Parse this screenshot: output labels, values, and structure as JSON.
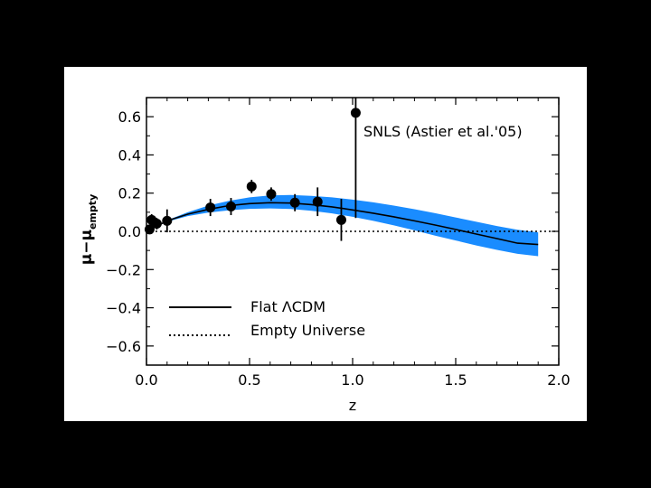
{
  "colors": {
    "band": "#1a8cff",
    "ink": "#000000",
    "frame": "#000000",
    "panel": "#ffffff"
  },
  "chart_data": {
    "type": "scatter",
    "title": "",
    "xlabel": "z",
    "ylabel_main": "μ−μ",
    "ylabel_sub": "empty",
    "xlim": [
      0.0,
      2.0
    ],
    "ylim": [
      -0.7,
      0.7
    ],
    "xticks": [
      0.0,
      0.5,
      1.0,
      1.5,
      2.0
    ],
    "xtick_labels": [
      "0.0",
      "0.5",
      "1.0",
      "1.5",
      "2.0"
    ],
    "yticks": [
      -0.6,
      -0.4,
      -0.2,
      0.0,
      0.2,
      0.4,
      0.6
    ],
    "ytick_labels": [
      "−0.6",
      "−0.4",
      "−0.2",
      "0.0",
      "0.2",
      "0.4",
      "0.6"
    ],
    "annotation": "SNLS (Astier et al.'05)",
    "points": [
      {
        "x": 0.015,
        "y": 0.01,
        "err": 0.02
      },
      {
        "x": 0.025,
        "y": 0.06,
        "err": 0.03
      },
      {
        "x": 0.05,
        "y": 0.04,
        "err": 0.03
      },
      {
        "x": 0.1,
        "y": 0.055,
        "err": 0.06
      },
      {
        "x": 0.31,
        "y": 0.125,
        "err": 0.045
      },
      {
        "x": 0.41,
        "y": 0.13,
        "err": 0.045
      },
      {
        "x": 0.51,
        "y": 0.235,
        "err": 0.035
      },
      {
        "x": 0.605,
        "y": 0.195,
        "err": 0.035
      },
      {
        "x": 0.72,
        "y": 0.15,
        "err": 0.045
      },
      {
        "x": 0.83,
        "y": 0.155,
        "err": 0.075
      },
      {
        "x": 0.945,
        "y": 0.06,
        "err": 0.11
      },
      {
        "x": 1.015,
        "y": 0.62,
        "err": 0.55
      }
    ],
    "series": [
      {
        "name": "Flat ΛCDM",
        "style": "solid",
        "x": [
          0,
          0.1,
          0.2,
          0.3,
          0.4,
          0.5,
          0.6,
          0.7,
          0.8,
          0.9,
          1.0,
          1.1,
          1.2,
          1.3,
          1.4,
          1.5,
          1.6,
          1.7,
          1.8,
          1.9
        ],
        "y": [
          0,
          0.055,
          0.09,
          0.115,
          0.135,
          0.145,
          0.15,
          0.148,
          0.14,
          0.128,
          0.112,
          0.095,
          0.076,
          0.055,
          0.033,
          0.01,
          -0.014,
          -0.038,
          -0.062,
          -0.069
        ]
      },
      {
        "name": "Empty Universe",
        "style": "dotted",
        "x": [
          0,
          2.0
        ],
        "y": [
          0,
          0
        ]
      }
    ],
    "band": {
      "x": [
        0,
        0.1,
        0.2,
        0.3,
        0.4,
        0.5,
        0.6,
        0.7,
        0.8,
        0.9,
        1.0,
        1.1,
        1.2,
        1.3,
        1.4,
        1.5,
        1.6,
        1.7,
        1.8,
        1.9
      ],
      "upper": [
        0,
        0.058,
        0.1,
        0.135,
        0.16,
        0.178,
        0.188,
        0.19,
        0.186,
        0.178,
        0.166,
        0.152,
        0.135,
        0.116,
        0.095,
        0.073,
        0.05,
        0.028,
        0.008,
        -0.005
      ],
      "lower": [
        0,
        0.05,
        0.08,
        0.098,
        0.11,
        0.118,
        0.12,
        0.117,
        0.108,
        0.094,
        0.076,
        0.055,
        0.031,
        0.005,
        -0.022,
        -0.048,
        -0.074,
        -0.097,
        -0.118,
        -0.13
      ]
    },
    "legend": [
      {
        "label": "Flat ΛCDM",
        "style": "solid"
      },
      {
        "label": "Empty Universe",
        "style": "dotted"
      }
    ],
    "legend_position": "bottom-left"
  }
}
